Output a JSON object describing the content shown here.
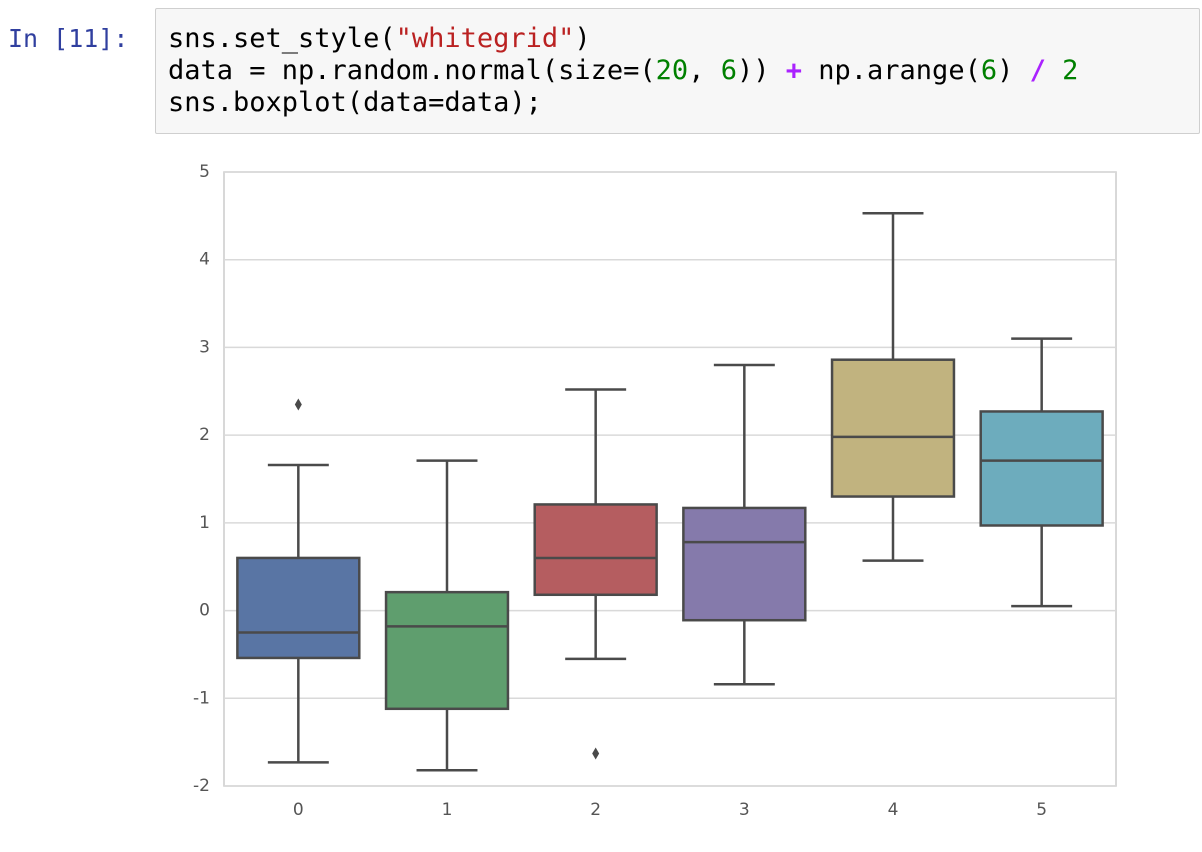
{
  "prompt": "In [11]:",
  "code": {
    "lines": [
      [
        {
          "text": "sns.set_style(",
          "kind": "plain"
        },
        {
          "text": "\"whitegrid\"",
          "kind": "string"
        },
        {
          "text": ")",
          "kind": "plain"
        }
      ],
      [
        {
          "text": "data = np.random.normal(size=(",
          "kind": "plain"
        },
        {
          "text": "20",
          "kind": "number"
        },
        {
          "text": ", ",
          "kind": "plain"
        },
        {
          "text": "6",
          "kind": "number"
        },
        {
          "text": ")) ",
          "kind": "plain"
        },
        {
          "text": "+",
          "kind": "operator"
        },
        {
          "text": " np.arange(",
          "kind": "plain"
        },
        {
          "text": "6",
          "kind": "number"
        },
        {
          "text": ") ",
          "kind": "plain"
        },
        {
          "text": "/",
          "kind": "operator"
        },
        {
          "text": " ",
          "kind": "plain"
        },
        {
          "text": "2",
          "kind": "number"
        }
      ],
      [
        {
          "text": "sns.boxplot(data=data);",
          "kind": "plain"
        }
      ]
    ]
  },
  "chart_data": {
    "type": "box",
    "categories": [
      "0",
      "1",
      "2",
      "3",
      "4",
      "5"
    ],
    "whisker_low": [
      -1.73,
      -1.82,
      -0.55,
      -0.84,
      0.57,
      0.05
    ],
    "q1": [
      -0.54,
      -1.12,
      0.18,
      -0.11,
      1.3,
      0.97
    ],
    "median": [
      -0.25,
      -0.18,
      0.6,
      0.78,
      1.98,
      1.71
    ],
    "q3": [
      0.6,
      0.21,
      1.21,
      1.17,
      2.86,
      2.27
    ],
    "whisker_high": [
      1.66,
      1.71,
      2.52,
      2.8,
      4.53,
      3.1
    ],
    "outliers": [
      [
        2.35
      ],
      [],
      [
        -1.63
      ],
      [],
      [],
      []
    ],
    "colors": [
      "#5975a4",
      "#5f9e6e",
      "#b55d60",
      "#857aab",
      "#c1b37f",
      "#6dacbd"
    ],
    "ylim": [
      -2,
      5
    ],
    "yticks": [
      -2,
      -1,
      0,
      1,
      2,
      3,
      4,
      5
    ],
    "grid": true
  }
}
